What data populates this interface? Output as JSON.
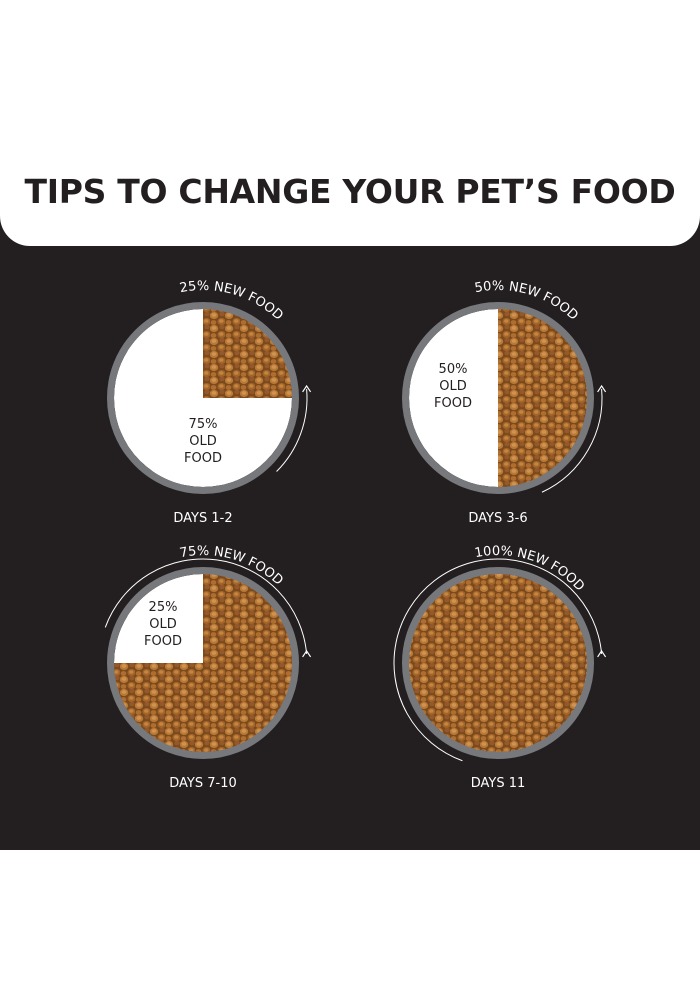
{
  "title": "TIPS TO CHANGE YOUR PET’S FOOD",
  "colors": {
    "background": "#231f20",
    "bowl_rim": "#77787b",
    "old_food": "#ffffff",
    "kibble": "#a8672f",
    "text_on_dark": "#ffffff",
    "title_text": "#231f20"
  },
  "stages": [
    {
      "days": "DAYS 1-2",
      "new_food_fraction": 0.25,
      "new_label": "25% NEW FOOD",
      "old_label": [
        "75%",
        "OLD",
        "FOOD"
      ]
    },
    {
      "days": "DAYS 3-6",
      "new_food_fraction": 0.5,
      "new_label": "50% NEW FOOD",
      "old_label": [
        "50%",
        "OLD",
        "FOOD"
      ]
    },
    {
      "days": "DAYS 7-10",
      "new_food_fraction": 0.75,
      "new_label": "75% NEW FOOD",
      "old_label": [
        "25%",
        "OLD",
        "FOOD"
      ]
    },
    {
      "days": "DAYS 11",
      "new_food_fraction": 1.0,
      "new_label": "100% NEW FOOD",
      "old_label": []
    }
  ],
  "icons": [
    "progress-arrow-icon"
  ]
}
